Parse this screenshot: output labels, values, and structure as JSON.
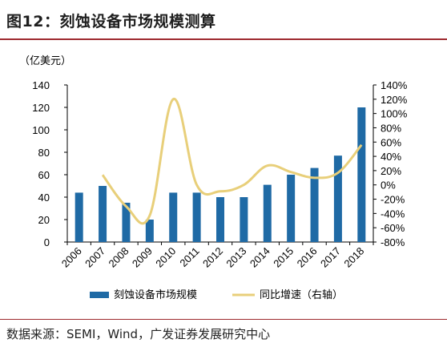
{
  "header": {
    "title": "图12：刻蚀设备市场规模测算"
  },
  "footer": {
    "source": "数据来源：SEMI，Wind，广发证券发展研究中心"
  },
  "chart_data": {
    "type": "bar",
    "unit_label": "（亿美元）",
    "categories": [
      "2006",
      "2007",
      "2008",
      "2009",
      "2010",
      "2011",
      "2012",
      "2013",
      "2014",
      "2015",
      "2016",
      "2017",
      "2018"
    ],
    "series": [
      {
        "name": "刻蚀设备市场规模",
        "type": "bar",
        "axis": "left",
        "color": "#1f6aa5",
        "values": [
          44,
          50,
          35,
          20,
          44,
          44,
          40,
          40,
          51,
          60,
          66,
          77,
          120
        ]
      },
      {
        "name": "同比增速（右轴）",
        "type": "line",
        "axis": "right",
        "color": "#e8cf7a",
        "values": [
          null,
          14,
          -30,
          -43,
          120,
          0,
          -9,
          0,
          27,
          18,
          10,
          17,
          56
        ]
      }
    ],
    "left_axis": {
      "min": 0,
      "max": 140,
      "step": 20,
      "ticks": [
        "0",
        "20",
        "40",
        "60",
        "80",
        "100",
        "120",
        "140"
      ]
    },
    "right_axis": {
      "min": -80,
      "max": 140,
      "step": 20,
      "ticks": [
        "-80%",
        "-60%",
        "-40%",
        "-20%",
        "0%",
        "20%",
        "40%",
        "60%",
        "80%",
        "100%",
        "120%",
        "140%"
      ]
    },
    "legend_position": "bottom",
    "grid": false
  }
}
